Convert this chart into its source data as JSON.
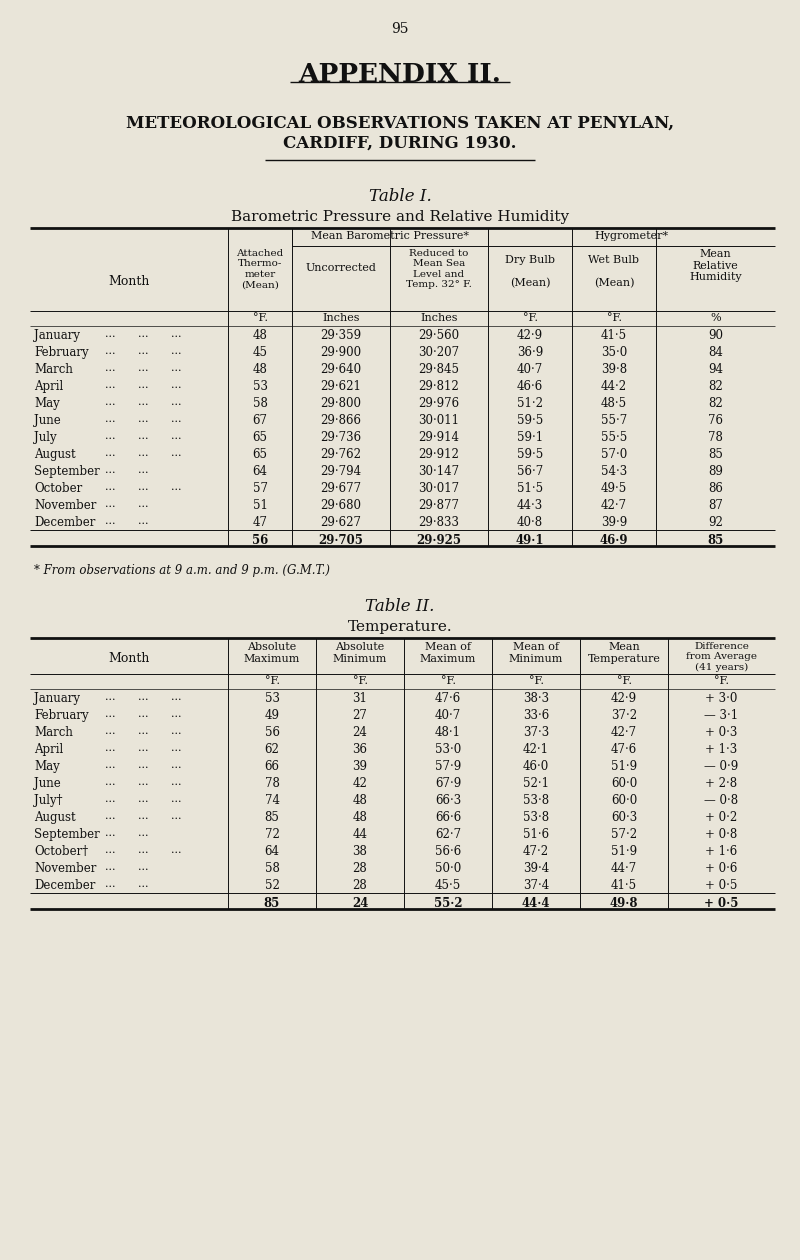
{
  "bg_color": "#e9e5d9",
  "text_color": "#1a1a1a",
  "page_number": "95",
  "appendix_title": "APPENDIX II.",
  "subtitle_line1": "METEOROLOGICAL OBSERVATIONS TAKEN AT PENYLAN,",
  "subtitle_line2": "CARDIFF, DURING 1930.",
  "table1_title": "Table I.",
  "table1_subtitle": "Barometric Pressure and Relative Humidity",
  "table1_group_barom": "Mean Barometric Pressure*",
  "table1_group_hygro": "Hygrometer*",
  "table1_months": [
    "January",
    "February",
    "March",
    "April",
    "May",
    "June",
    "July",
    "August",
    "September",
    "October",
    "November",
    "December"
  ],
  "table1_attached": [
    "48",
    "45",
    "48",
    "53",
    "58",
    "67",
    "65",
    "65",
    "64",
    "57",
    "51",
    "47"
  ],
  "table1_uncorrected": [
    "29·359",
    "29·900",
    "29·640",
    "29·621",
    "29·800",
    "29·866",
    "29·736",
    "29·762",
    "29·794",
    "29·677",
    "29·680",
    "29·627"
  ],
  "table1_reduced": [
    "29·560",
    "30·207",
    "29·845",
    "29·812",
    "29·976",
    "30·011",
    "29·914",
    "29·912",
    "30·147",
    "30·017",
    "29·877",
    "29·833"
  ],
  "table1_dry_bulb": [
    "42·9",
    "36·9",
    "40·7",
    "46·6",
    "51·2",
    "59·5",
    "59·1",
    "59·5",
    "56·7",
    "51·5",
    "44·3",
    "40·8"
  ],
  "table1_wet_bulb": [
    "41·5",
    "35·0",
    "39·8",
    "44·2",
    "48·5",
    "55·7",
    "55·5",
    "57·0",
    "54·3",
    "49·5",
    "42·7",
    "39·9"
  ],
  "table1_humidity": [
    "90",
    "84",
    "94",
    "82",
    "82",
    "76",
    "78",
    "85",
    "89",
    "86",
    "87",
    "92"
  ],
  "table1_tot_attached": "56",
  "table1_tot_uncorr": "29·705",
  "table1_tot_reduced": "29·925",
  "table1_tot_dry": "49·1",
  "table1_tot_wet": "46·9",
  "table1_tot_hum": "85",
  "footnote": "* From observations at 9 a.m. and 9 p.m. (G.M.T.)",
  "table2_title": "Table II.",
  "table2_subtitle": "Temperature.",
  "table2_months": [
    "January",
    "February",
    "March",
    "April",
    "May",
    "June",
    "July†",
    "August",
    "September",
    "October†",
    "November",
    "December"
  ],
  "table2_abs_max": [
    "53",
    "49",
    "56",
    "62",
    "66",
    "78",
    "74",
    "85",
    "72",
    "64",
    "58",
    "52"
  ],
  "table2_abs_min": [
    "31",
    "27",
    "24",
    "36",
    "39",
    "42",
    "48",
    "48",
    "44",
    "38",
    "28",
    "28"
  ],
  "table2_mean_max": [
    "47·6",
    "40·7",
    "48·1",
    "53·0",
    "57·9",
    "67·9",
    "66·3",
    "66·6",
    "62·7",
    "56·6",
    "50·0",
    "45·5"
  ],
  "table2_mean_min": [
    "38·3",
    "33·6",
    "37·3",
    "42·1",
    "46·0",
    "52·1",
    "53·8",
    "53·8",
    "51·6",
    "47·2",
    "39·4",
    "37·4"
  ],
  "table2_mean_temp": [
    "42·9",
    "37·2",
    "42·7",
    "47·6",
    "51·9",
    "60·0",
    "60·0",
    "60·3",
    "57·2",
    "51·9",
    "44·7",
    "41·5"
  ],
  "table2_diff": [
    "+ 3·0",
    "— 3·1",
    "+ 0·3",
    "+ 1·3",
    "— 0·9",
    "+ 2·8",
    "— 0·8",
    "+ 0·2",
    "+ 0·8",
    "+ 1·6",
    "+ 0·6",
    "+ 0·5"
  ],
  "table2_tot_abs_max": "85",
  "table2_tot_abs_min": "24",
  "table2_tot_mean_max": "55·2",
  "table2_tot_mean_min": "44·4",
  "table2_tot_mean_temp": "49·8",
  "table2_tot_diff": "+ 0·5"
}
